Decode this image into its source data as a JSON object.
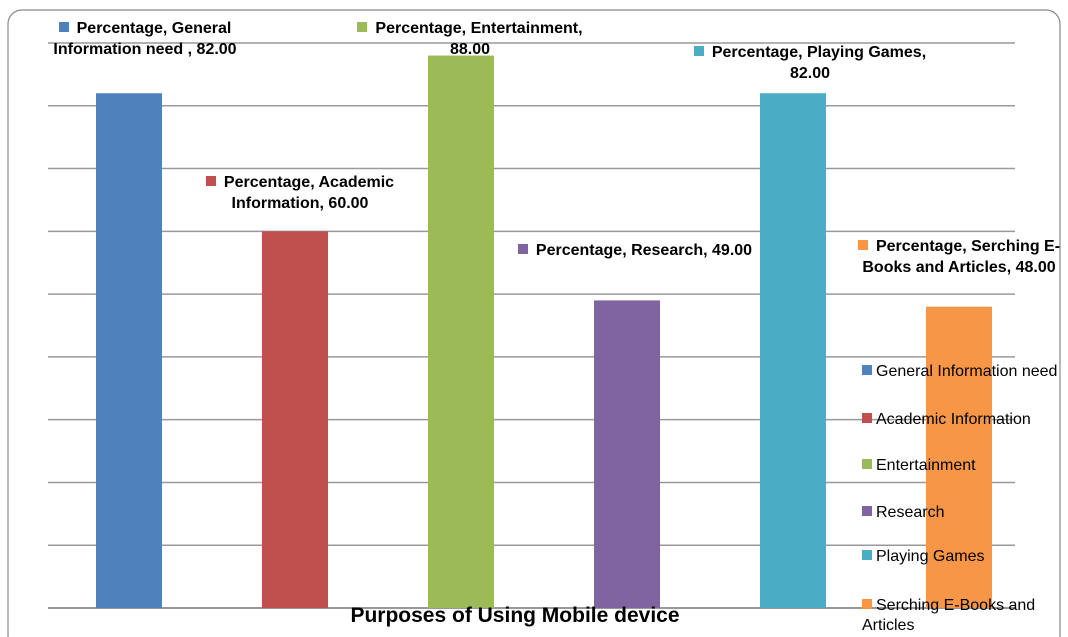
{
  "chart_data": {
    "type": "bar",
    "title": "Purposes of Using Mobile device",
    "categories": [
      "General Information need",
      "Academic Information",
      "Entertainment",
      "Research",
      "Playing Games",
      "Serching E-Books and Articles"
    ],
    "series": [
      {
        "name": "Percentage",
        "colors": [
          "#4f81bd",
          "#c0504d",
          "#9bbb59",
          "#8064a2",
          "#4bacc6",
          "#f79646"
        ],
        "values": [
          82,
          60,
          88,
          49,
          82,
          48
        ],
        "value_labels": [
          "Percentage, General Information need , 82.00",
          "Percentage, Academic Information, 60.00",
          "Percentage, Entertainment, 88.00",
          "Percentage, Research, 49.00",
          "Percentage, Playing Games, 82.00",
          "Percentage, Serching E-Books and Articles, 48.00"
        ]
      }
    ],
    "ylim": [
      0,
      90
    ],
    "yticks": [
      0,
      10,
      20,
      30,
      40,
      50,
      60,
      70,
      80,
      90
    ],
    "grid": true,
    "legend": "right"
  }
}
